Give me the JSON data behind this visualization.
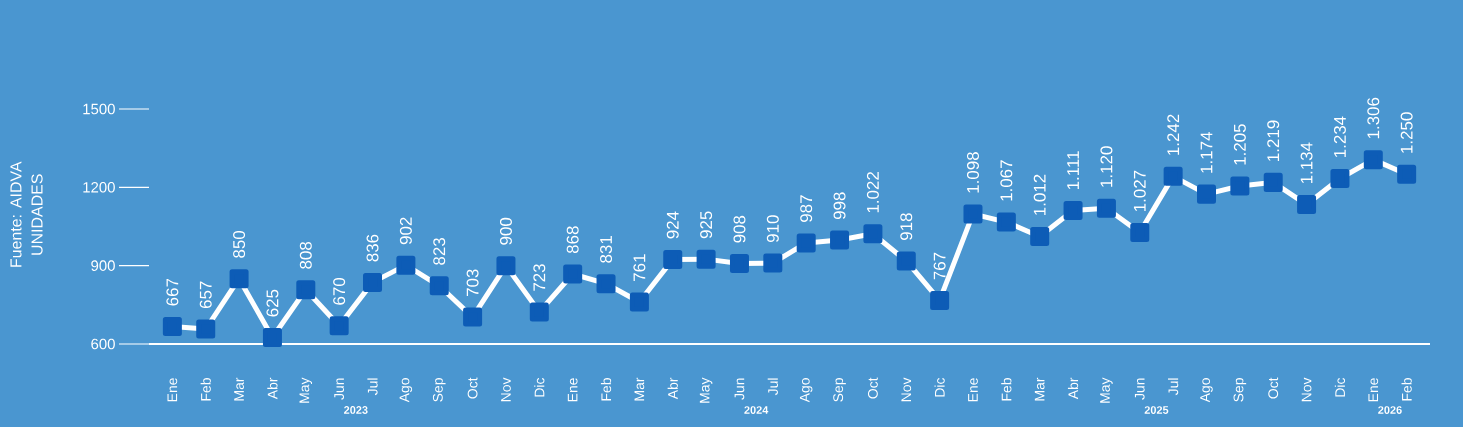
{
  "chart_data": {
    "type": "line",
    "ylabel": "UNIDADES",
    "annotations": [
      "Fuente: AIDVA",
      "2023",
      "2024",
      "2025",
      "2026"
    ],
    "categories": [
      "Ene",
      "Feb",
      "Mar",
      "Abr",
      "May",
      "Jun",
      "Jul",
      "Ago",
      "Sep",
      "Oct",
      "Nov",
      "Dic",
      "Ene",
      "Feb",
      "Mar",
      "Abr",
      "May",
      "Jun",
      "Jul",
      "Ago",
      "Sep",
      "Oct",
      "Nov",
      "Dic",
      "Ene",
      "Feb",
      "Mar",
      "Abr",
      "May",
      "Jun",
      "Jul",
      "Ago",
      "Sep",
      "Oct",
      "Nov",
      "Dic",
      "Ene",
      "Feb"
    ],
    "series": [
      {
        "color": "#ffffff",
        "values": [
          667,
          657,
          850,
          625,
          808,
          670,
          836,
          902,
          823,
          703,
          900,
          723,
          868,
          831,
          761,
          924,
          925,
          908,
          910,
          987,
          998,
          1022,
          918,
          767,
          1098,
          1067,
          1012,
          1111,
          1120,
          1027,
          1242,
          1174,
          1205,
          1219,
          1134,
          1234,
          1306,
          1250
        ],
        "value_labels": [
          "667",
          "657",
          "850",
          "625",
          "808",
          "670",
          "836",
          "902",
          "823",
          "703",
          "900",
          "723",
          "868",
          "831",
          "761",
          "924",
          "925",
          "908",
          "910",
          "987",
          "998",
          "1.022",
          "918",
          "767",
          "1.098",
          "1.067",
          "1.012",
          "1.111",
          "1.120",
          "1.027",
          "1.242",
          "1.174",
          "1.205",
          "1.219",
          "1.134",
          "1.234",
          "1.306",
          "1.250"
        ]
      }
    ],
    "ylim": [
      600,
      1500
    ],
    "yticks": [
      600,
      900,
      1200,
      1500
    ],
    "marker": "square",
    "line_style": "solid",
    "grid": false
  }
}
